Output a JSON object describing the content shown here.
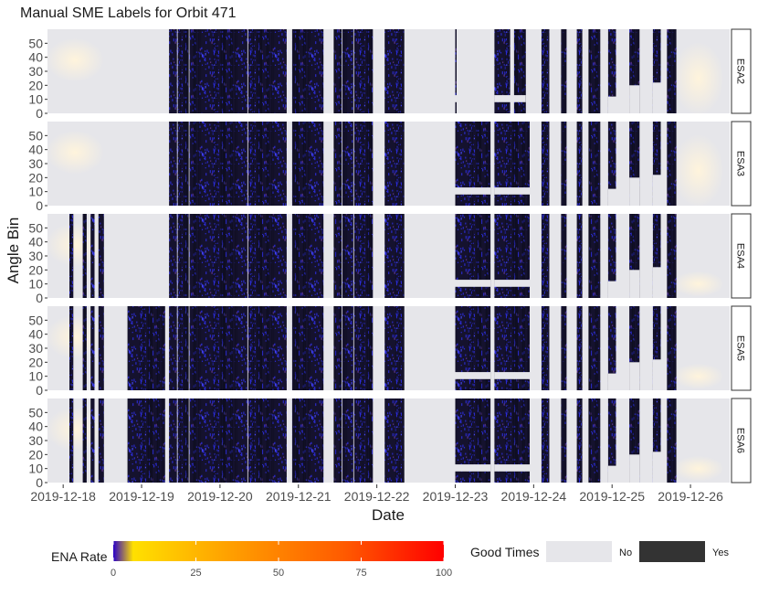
{
  "chart_data": {
    "type": "heatmap",
    "title": "Manual SME Labels for Orbit 471",
    "xlabel": "Date",
    "ylabel": "Angle Bin",
    "x_ticks": [
      "2019-12-18",
      "2019-12-19",
      "2019-12-20",
      "2019-12-21",
      "2019-12-22",
      "2019-12-23",
      "2019-12-24",
      "2019-12-25",
      "2019-12-26"
    ],
    "x_range_days": [
      -0.2,
      8.5
    ],
    "y_ticks": [
      0,
      10,
      20,
      30,
      40,
      50
    ],
    "ylim": [
      0,
      60
    ],
    "panels": [
      {
        "name": "ESA2",
        "good_intervals": [
          [
            1.35,
            2.85
          ],
          [
            2.92,
            3.32
          ],
          [
            3.45,
            3.95
          ],
          [
            4.1,
            4.35
          ],
          [
            4.75,
            4.85
          ],
          [
            5.0,
            5.0
          ],
          [
            5.5,
            5.7
          ],
          [
            5.75,
            5.9
          ],
          [
            6.1,
            6.2
          ],
          [
            6.35,
            6.42
          ],
          [
            6.55,
            6.62
          ],
          [
            6.7,
            6.85
          ],
          [
            6.95,
            7.05
          ],
          [
            7.22,
            7.35
          ],
          [
            7.52,
            7.62
          ],
          [
            7.7,
            7.82
          ]
        ],
        "notch_intervals": [
          [
            4.75,
            4.85
          ],
          [
            5.0,
            5.45
          ],
          [
            5.5,
            5.9
          ],
          [
            6.95,
            7.05
          ],
          [
            7.22,
            7.35
          ],
          [
            7.52,
            7.62
          ]
        ]
      },
      {
        "name": "ESA3",
        "good_intervals": [
          [
            1.35,
            2.85
          ],
          [
            2.92,
            3.32
          ],
          [
            3.45,
            3.95
          ],
          [
            4.1,
            4.35
          ],
          [
            4.75,
            4.85
          ],
          [
            5.0,
            5.45
          ],
          [
            5.5,
            5.95
          ],
          [
            6.1,
            6.2
          ],
          [
            6.35,
            6.42
          ],
          [
            6.55,
            6.62
          ],
          [
            6.7,
            6.85
          ],
          [
            6.95,
            7.05
          ],
          [
            7.22,
            7.35
          ],
          [
            7.52,
            7.62
          ],
          [
            7.7,
            7.82
          ]
        ],
        "notch_intervals": [
          [
            4.75,
            4.85
          ],
          [
            5.0,
            5.45
          ],
          [
            5.5,
            5.95
          ],
          [
            6.95,
            7.05
          ],
          [
            7.22,
            7.35
          ],
          [
            7.52,
            7.62
          ]
        ]
      },
      {
        "name": "ESA4",
        "good_intervals": [
          [
            0.08,
            0.13
          ],
          [
            0.25,
            0.3
          ],
          [
            0.35,
            0.4
          ],
          [
            0.45,
            0.52
          ],
          [
            1.35,
            2.85
          ],
          [
            2.92,
            3.32
          ],
          [
            3.45,
            3.95
          ],
          [
            4.1,
            4.35
          ],
          [
            4.75,
            4.85
          ],
          [
            5.0,
            5.45
          ],
          [
            5.5,
            5.95
          ],
          [
            6.1,
            6.2
          ],
          [
            6.35,
            6.42
          ],
          [
            6.55,
            6.62
          ],
          [
            6.7,
            6.85
          ],
          [
            6.95,
            7.05
          ],
          [
            7.22,
            7.35
          ],
          [
            7.52,
            7.62
          ],
          [
            7.7,
            7.82
          ]
        ],
        "notch_intervals": [
          [
            4.75,
            4.85
          ],
          [
            5.0,
            5.45
          ],
          [
            5.5,
            5.95
          ],
          [
            6.95,
            7.05
          ],
          [
            7.22,
            7.35
          ],
          [
            7.52,
            7.62
          ]
        ]
      },
      {
        "name": "ESA5",
        "good_intervals": [
          [
            0.08,
            0.13
          ],
          [
            0.25,
            0.3
          ],
          [
            0.35,
            0.4
          ],
          [
            0.45,
            0.52
          ],
          [
            0.82,
            1.3
          ],
          [
            1.35,
            2.85
          ],
          [
            2.92,
            3.32
          ],
          [
            3.45,
            3.95
          ],
          [
            4.1,
            4.35
          ],
          [
            4.75,
            4.85
          ],
          [
            5.0,
            5.45
          ],
          [
            5.5,
            5.95
          ],
          [
            6.1,
            6.2
          ],
          [
            6.35,
            6.42
          ],
          [
            6.55,
            6.62
          ],
          [
            6.7,
            6.85
          ],
          [
            6.95,
            7.05
          ],
          [
            7.22,
            7.35
          ],
          [
            7.52,
            7.62
          ],
          [
            7.7,
            7.82
          ]
        ],
        "notch_intervals": [
          [
            4.75,
            4.85
          ],
          [
            5.0,
            5.45
          ],
          [
            5.5,
            5.95
          ],
          [
            6.95,
            7.05
          ],
          [
            7.22,
            7.35
          ],
          [
            7.52,
            7.62
          ]
        ]
      },
      {
        "name": "ESA6",
        "good_intervals": [
          [
            0.08,
            0.13
          ],
          [
            0.25,
            0.3
          ],
          [
            0.35,
            0.4
          ],
          [
            0.45,
            0.52
          ],
          [
            0.82,
            1.3
          ],
          [
            1.35,
            2.85
          ],
          [
            2.92,
            3.32
          ],
          [
            3.45,
            3.95
          ],
          [
            4.1,
            4.35
          ],
          [
            4.75,
            4.85
          ],
          [
            5.0,
            5.45
          ],
          [
            5.5,
            5.95
          ],
          [
            6.1,
            6.2
          ],
          [
            6.35,
            6.42
          ],
          [
            6.55,
            6.62
          ],
          [
            6.7,
            6.85
          ],
          [
            6.95,
            7.05
          ],
          [
            7.22,
            7.35
          ],
          [
            7.52,
            7.62
          ],
          [
            7.7,
            7.82
          ]
        ],
        "notch_intervals": [
          [
            4.75,
            4.85
          ],
          [
            5.0,
            5.45
          ],
          [
            5.5,
            5.95
          ],
          [
            6.95,
            7.05
          ],
          [
            7.22,
            7.35
          ],
          [
            7.52,
            7.62
          ]
        ]
      }
    ],
    "legend": {
      "colorbar_title": "ENA Rate",
      "colorbar_ticks": [
        0,
        25,
        50,
        75,
        100
      ],
      "colorbar_range": [
        0,
        100
      ],
      "colorbar_colors": [
        "#2a00c8",
        "#ffe000",
        "#ffa000",
        "#ff5a00",
        "#ff0000"
      ],
      "good_times_title": "Good Times",
      "good_times_entries": [
        {
          "label": "No",
          "color": "#e6e6ea"
        },
        {
          "label": "Yes",
          "color": "#333333"
        }
      ]
    },
    "colors": {
      "bad_background": "#e6e6ea",
      "good_background": "#15122e",
      "good_speckle": "#2b2bd8",
      "warm_haze": "#fff4dc",
      "strip_fill": "#ffffff",
      "strip_border": "#333333"
    }
  }
}
